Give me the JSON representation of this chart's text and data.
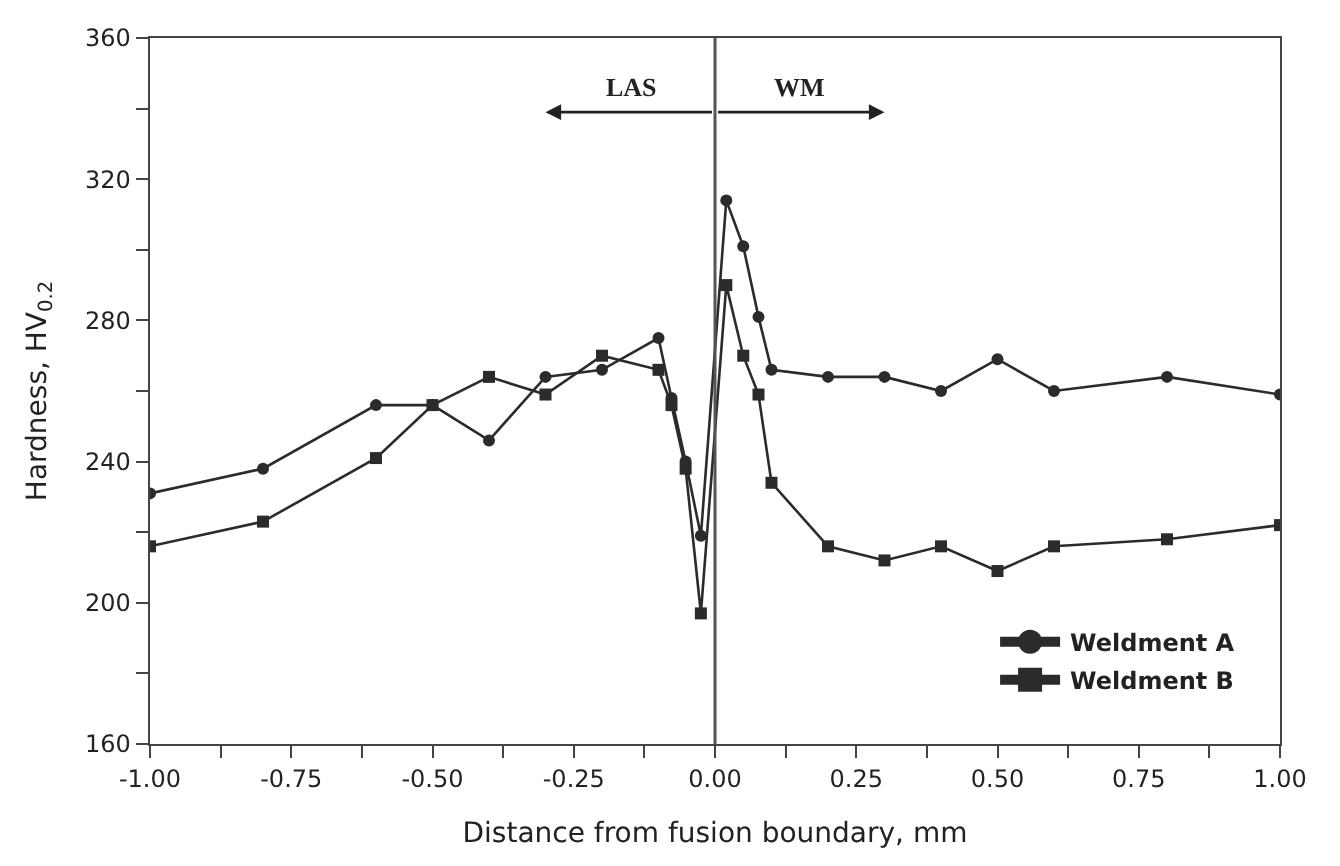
{
  "chart_data": {
    "type": "line",
    "xlabel": "Distance from fusion boundary, mm",
    "ylabel": "Hardness, HV$_{0.2}$",
    "series": [
      {
        "name": "Weldment A",
        "color": "#2b2b2b",
        "marker": "circle",
        "x": [
          -1.0,
          -0.8,
          -0.6,
          -0.5,
          -0.4,
          -0.3,
          -0.2,
          -0.1,
          -0.077,
          -0.052,
          -0.025,
          0.02,
          0.05,
          0.077,
          0.1,
          0.2,
          0.3,
          0.4,
          0.5,
          0.6,
          0.8,
          1.0
        ],
        "values": [
          231,
          238,
          256,
          256,
          246,
          264,
          266,
          275,
          258,
          240,
          219,
          314,
          301,
          281,
          266,
          264,
          264,
          260,
          269,
          260,
          264,
          259
        ]
      },
      {
        "name": "Weldment B",
        "color": "#2b2b2b",
        "marker": "square",
        "x": [
          -1.0,
          -0.8,
          -0.6,
          -0.5,
          -0.4,
          -0.3,
          -0.2,
          -0.1,
          -0.077,
          -0.052,
          -0.025,
          0.02,
          0.05,
          0.077,
          0.1,
          0.2,
          0.3,
          0.4,
          0.5,
          0.6,
          0.8,
          1.0
        ],
        "values": [
          216,
          223,
          241,
          256,
          264,
          259,
          270,
          266,
          256,
          238,
          197,
          290,
          270,
          259,
          234,
          216,
          212,
          216,
          209,
          216,
          218,
          222
        ]
      }
    ],
    "xlim": [
      -1.0,
      1.0
    ],
    "xticks": [
      {
        "value": -1.0,
        "label": "-1.00"
      },
      {
        "value": -0.875,
        "label": null
      },
      {
        "value": -0.75,
        "label": "-0.75"
      },
      {
        "value": -0.625,
        "label": null
      },
      {
        "value": -0.5,
        "label": "-0.50"
      },
      {
        "value": -0.375,
        "label": null
      },
      {
        "value": -0.25,
        "label": "-0.25"
      },
      {
        "value": -0.125,
        "label": null
      },
      {
        "value": 0,
        "label": "0.00"
      },
      {
        "value": 0.125,
        "label": null
      },
      {
        "value": 0.25,
        "label": "0.25"
      },
      {
        "value": 0.375,
        "label": null
      },
      {
        "value": 0.5,
        "label": "0.50"
      },
      {
        "value": 0.625,
        "label": null
      },
      {
        "value": 0.75,
        "label": "0.75"
      },
      {
        "value": 0.875,
        "label": null
      },
      {
        "value": 1.0,
        "label": "1.00"
      }
    ],
    "ylim": [
      160,
      360
    ],
    "yticks": [
      160,
      {
        "value": 180,
        "label": null
      },
      200,
      {
        "value": 220,
        "label": null
      },
      240,
      {
        "value": 260,
        "label": null
      },
      280,
      {
        "value": 300,
        "label": null
      },
      320,
      {
        "value": 340,
        "label": null
      },
      360
    ],
    "ref_lines": [
      {
        "axis": "x",
        "value": 0,
        "color": "#555555"
      }
    ],
    "annotations": [
      "LAS",
      "WM"
    ],
    "legend": "bottom right",
    "line_style": "solid"
  }
}
